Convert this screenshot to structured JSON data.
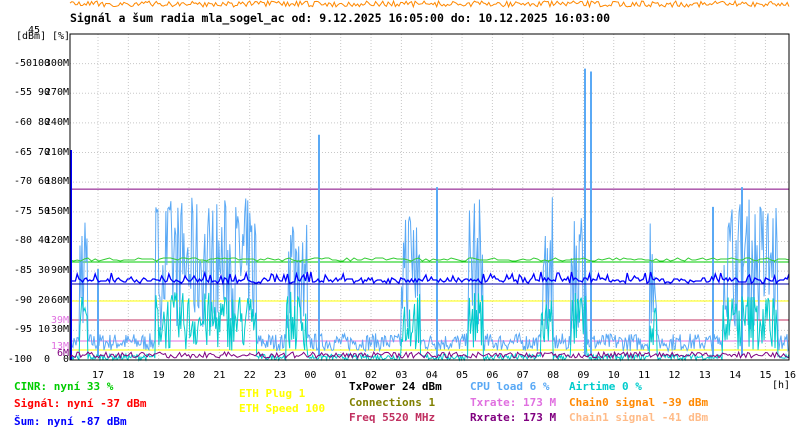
{
  "title": "Signál a šum radia mla_sogel_ac od: 9.12.2025 16:05:00 do: 10.12.2025 16:03:00",
  "unit_dbm": "[dBm]",
  "unit_pct": "[%]",
  "unit_h": "[h]",
  "chart_data": {
    "type": "line",
    "title": "Signál a šum radia mla_sogel_ac od: 9.12.2025 16:05:00 do: 10.12.2025 16:03:00",
    "y_dbm_ticks": [
      "45",
      "-50",
      "-55",
      "-60",
      "-65",
      "-70",
      "-75",
      "-80",
      "-85",
      "-90",
      "-95",
      "-100"
    ],
    "y_pct_ticks": [
      "100",
      "90",
      "80",
      "70",
      "60",
      "50",
      "40",
      "30",
      "20",
      "10",
      "0"
    ],
    "y_rate_ticks": [
      "300M",
      "270M",
      "240M",
      "210M",
      "180M",
      "150M",
      "120M",
      "90M",
      "60M",
      "30M",
      "0"
    ],
    "y_rate_special": [
      "39M",
      "13M",
      "6M"
    ],
    "x_ticks": [
      "17",
      "18",
      "19",
      "20",
      "21",
      "22",
      "23",
      "00",
      "01",
      "02",
      "03",
      "04",
      "05",
      "06",
      "07",
      "08",
      "09",
      "10",
      "11",
      "12",
      "13",
      "14",
      "15",
      "16"
    ],
    "xlabel": "[h]",
    "ylim_dbm": [
      -100,
      -45
    ],
    "ylim_pct": [
      0,
      100
    ],
    "ylim_rate": [
      0,
      300
    ],
    "reference_lines": [
      {
        "name": "Rxrate",
        "value": 173,
        "unit": "M",
        "color": "#800080"
      },
      {
        "name": "Signál",
        "value": -37,
        "unit": "dBm",
        "color": "#ff0000"
      },
      {
        "name": "Šum",
        "value": -87,
        "unit": "dBm",
        "color": "#0000ff"
      },
      {
        "name": "CINR",
        "value": 33,
        "unit": "%",
        "color": "#00cc00"
      },
      {
        "name": "ETH Plug",
        "value": 1,
        "color": "#ffff00"
      },
      {
        "name": "Connections",
        "value": 1,
        "color": "#808000"
      }
    ],
    "series_colors": {
      "cpu": "#5aa9f5",
      "airtime": "#00cccc",
      "noise": "#0000ff",
      "cinr": "#33cc33",
      "signal_top": "#ff8800",
      "rxrate": "#800080",
      "txrate": "#e070e0",
      "eth": "#ffff00"
    }
  },
  "legend": {
    "cinr": "CINR: nyní 33 %",
    "signal": "Signál: nyní -37 dBm",
    "sum": "Šum: nyní -87 dBm",
    "eth_plug": "ETH Plug 1",
    "eth_speed": "ETH Speed 100",
    "txpower": "TxPower 24 dBm",
    "connections": "Connections 1",
    "freq": "Freq 5520 MHz",
    "cpu": "CPU load 6 %",
    "txrate": "Txrate: 173 M",
    "rxrate": "Rxrate: 173 M",
    "airtime": "Airtime 0 %",
    "chain0": "Chain0 signal -39 dBm",
    "chain1": "Chain1 signal -41 dBm"
  },
  "colors": {
    "cinr": "#00cc00",
    "signal": "#ff0000",
    "sum": "#0000ff",
    "eth": "#ffff00",
    "txpower": "#000000",
    "connections": "#808000",
    "freq": "#c03060",
    "cpu": "#5aa9f5",
    "txrate": "#e070e0",
    "rxrate": "#800080",
    "airtime": "#00cccc",
    "chain0": "#ff8800",
    "chain1": "#ffbb88"
  }
}
